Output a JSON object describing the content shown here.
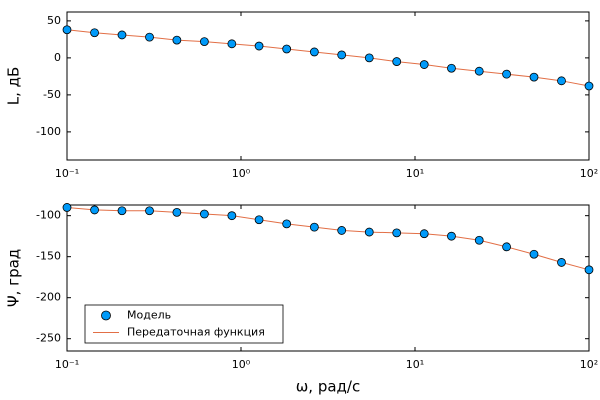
{
  "chart_data": [
    {
      "type": "line",
      "ylabel": "L, дБ",
      "xscale": "log",
      "x": [
        0.1,
        0.144,
        0.207,
        0.298,
        0.428,
        0.616,
        0.886,
        1.27,
        1.83,
        2.64,
        3.79,
        5.46,
        7.85,
        11.3,
        16.2,
        23.4,
        33.6,
        48.3,
        69.5,
        100
      ],
      "xlim": [
        0.1,
        100
      ],
      "xticks": [
        {
          "value": 0.1,
          "label": "10⁻¹"
        },
        {
          "value": 1,
          "label": "10⁰"
        },
        {
          "value": 10,
          "label": "10¹"
        },
        {
          "value": 100,
          "label": "10²"
        }
      ],
      "ylim": [
        -138,
        62
      ],
      "yticks": [
        -100,
        -50,
        0,
        50
      ],
      "series": [
        {
          "name": "Модель",
          "mode": "markers",
          "color": "#009af9",
          "values": [
            38,
            34,
            31,
            28,
            24,
            22,
            19,
            16,
            12,
            8,
            4,
            0,
            -5,
            -9,
            -14,
            -18,
            -22,
            -26,
            -31,
            -38
          ]
        },
        {
          "name": "Передаточная функция",
          "mode": "line",
          "color": "#e26f46",
          "values": [
            38,
            34,
            31,
            28,
            24,
            22,
            19,
            16,
            12,
            8,
            4,
            0,
            -5,
            -9,
            -14,
            -18,
            -22,
            -26,
            -31,
            -38
          ]
        }
      ]
    },
    {
      "type": "line",
      "ylabel": "Ψ, град",
      "xlabel": "ω, рад/с",
      "xscale": "log",
      "legend": "bottom-left",
      "x": [
        0.1,
        0.144,
        0.207,
        0.298,
        0.428,
        0.616,
        0.886,
        1.27,
        1.83,
        2.64,
        3.79,
        5.46,
        7.85,
        11.3,
        16.2,
        23.4,
        33.6,
        48.3,
        69.5,
        100
      ],
      "xlim": [
        0.1,
        100
      ],
      "xticks": [
        {
          "value": 0.1,
          "label": "10⁻¹"
        },
        {
          "value": 1,
          "label": "10⁰"
        },
        {
          "value": 10,
          "label": "10¹"
        },
        {
          "value": 100,
          "label": "10²"
        }
      ],
      "ylim": [
        -265,
        -87
      ],
      "yticks": [
        -250,
        -200,
        -150,
        -100
      ],
      "series": [
        {
          "name": "Модель",
          "mode": "markers",
          "color": "#009af9",
          "values": [
            -90,
            -93,
            -94,
            -94,
            -96,
            -98,
            -100,
            -105,
            -110,
            -114,
            -118,
            -120,
            -121,
            -122,
            -125,
            -130,
            -138,
            -147,
            -157,
            -166
          ]
        },
        {
          "name": "Передаточная функция",
          "mode": "line",
          "color": "#e26f46",
          "values": [
            -90,
            -93,
            -94,
            -94,
            -96,
            -98,
            -100,
            -105,
            -110,
            -114,
            -118,
            -120,
            -121,
            -122,
            -125,
            -130,
            -138,
            -147,
            -157,
            -166
          ]
        }
      ]
    }
  ]
}
